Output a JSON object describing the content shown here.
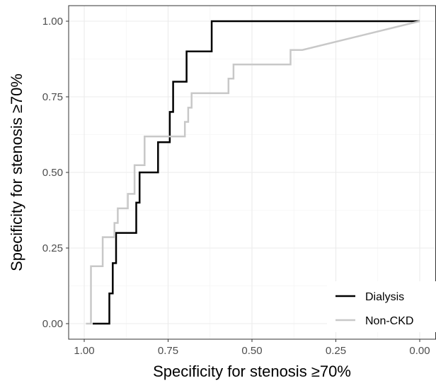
{
  "chart_data": {
    "type": "line",
    "title": "",
    "xlabel": "Specificity for stenosis ≥70%",
    "ylabel": "Specificity for stenosis ≥70%",
    "x_reversed": true,
    "xlim": [
      1.0,
      0.0
    ],
    "ylim": [
      0.0,
      1.0
    ],
    "x_ticks": [
      1.0,
      0.75,
      0.5,
      0.25,
      0.0
    ],
    "x_tick_labels": [
      "1.00",
      "0.75",
      "0.50",
      "0.25",
      "0.00"
    ],
    "y_ticks": [
      0.0,
      0.25,
      0.5,
      0.75,
      1.0
    ],
    "y_tick_labels": [
      "0.00",
      "0.25",
      "0.50",
      "0.75",
      "1.00"
    ],
    "grid": true,
    "legend_position": "bottom-right",
    "series": [
      {
        "name": "Dialysis",
        "color": "#000000",
        "points": [
          [
            0.975,
            0.0
          ],
          [
            0.925,
            0.0
          ],
          [
            0.925,
            0.1
          ],
          [
            0.915,
            0.1
          ],
          [
            0.915,
            0.2
          ],
          [
            0.905,
            0.2
          ],
          [
            0.905,
            0.3
          ],
          [
            0.845,
            0.3
          ],
          [
            0.845,
            0.4
          ],
          [
            0.835,
            0.4
          ],
          [
            0.835,
            0.5
          ],
          [
            0.78,
            0.5
          ],
          [
            0.78,
            0.6
          ],
          [
            0.745,
            0.6
          ],
          [
            0.745,
            0.7
          ],
          [
            0.735,
            0.7
          ],
          [
            0.735,
            0.8
          ],
          [
            0.695,
            0.8
          ],
          [
            0.695,
            0.9
          ],
          [
            0.62,
            0.9
          ],
          [
            0.62,
            1.0
          ],
          [
            0.0,
            1.0
          ]
        ]
      },
      {
        "name": "Non-CKD",
        "color": "#c8c8c8",
        "points": [
          [
            0.995,
            0.0
          ],
          [
            0.98,
            0.0
          ],
          [
            0.98,
            0.19
          ],
          [
            0.945,
            0.19
          ],
          [
            0.945,
            0.286
          ],
          [
            0.91,
            0.286
          ],
          [
            0.91,
            0.333
          ],
          [
            0.9,
            0.333
          ],
          [
            0.9,
            0.381
          ],
          [
            0.87,
            0.381
          ],
          [
            0.87,
            0.429
          ],
          [
            0.85,
            0.429
          ],
          [
            0.85,
            0.524
          ],
          [
            0.82,
            0.524
          ],
          [
            0.82,
            0.619
          ],
          [
            0.7,
            0.619
          ],
          [
            0.7,
            0.667
          ],
          [
            0.69,
            0.667
          ],
          [
            0.69,
            0.714
          ],
          [
            0.68,
            0.714
          ],
          [
            0.68,
            0.762
          ],
          [
            0.57,
            0.762
          ],
          [
            0.57,
            0.81
          ],
          [
            0.555,
            0.81
          ],
          [
            0.555,
            0.857
          ],
          [
            0.385,
            0.857
          ],
          [
            0.385,
            0.905
          ],
          [
            0.35,
            0.905
          ],
          [
            0.0,
            1.0
          ]
        ]
      }
    ]
  }
}
